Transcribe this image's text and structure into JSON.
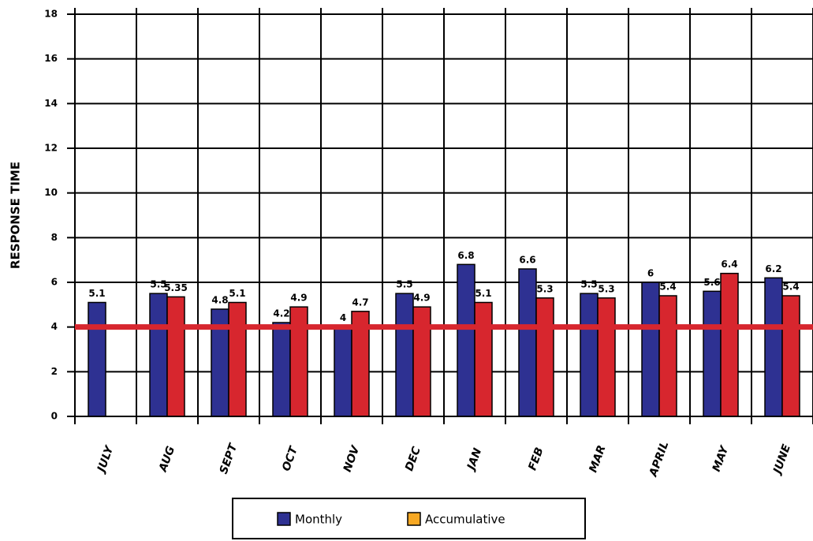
{
  "chart_data": {
    "type": "bar",
    "y_label": "RESPONSE TIME",
    "categories": [
      "JULY",
      "AUG",
      "SEPT",
      "OCT",
      "NOV",
      "DEC",
      "JAN",
      "FEB",
      "MAR",
      "APRIL",
      "MAY",
      "JUNE"
    ],
    "series": [
      {
        "name": "Monthly",
        "color": "#2e3192",
        "values": [
          5.1,
          5.5,
          4.8,
          4.2,
          4,
          5.5,
          6.8,
          6.6,
          5.5,
          6,
          5.6,
          6.2
        ]
      },
      {
        "name": "Accumulative",
        "color": "#d7262e",
        "legend_color": "#f7a823",
        "values": [
          null,
          5.35,
          5.1,
          4.9,
          4.7,
          4.9,
          5.1,
          5.3,
          5.3,
          5.4,
          6.4,
          5.4
        ]
      }
    ],
    "target_line": {
      "value": 4,
      "color": "#d7262e"
    },
    "ylim": [
      0,
      18
    ],
    "yticks": [
      0,
      2,
      4,
      6,
      8,
      10,
      12,
      14,
      16,
      18
    ],
    "grid": true
  }
}
